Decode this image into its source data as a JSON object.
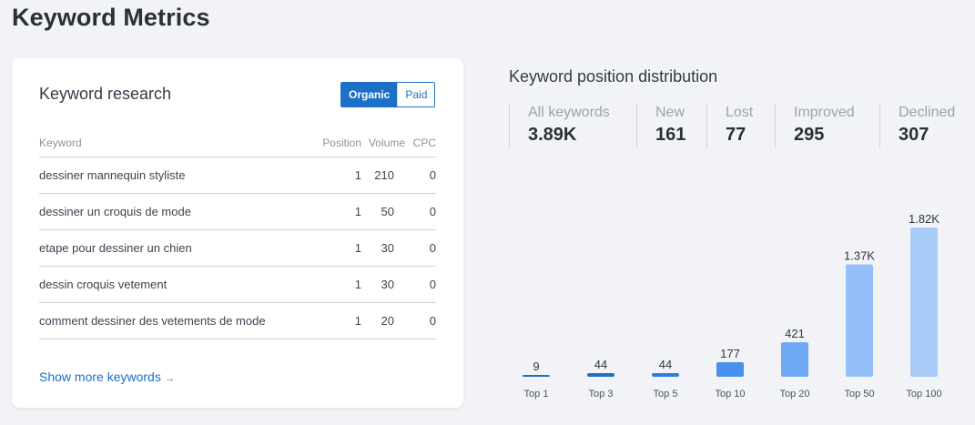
{
  "page": {
    "title": "Keyword Metrics"
  },
  "research": {
    "title": "Keyword research",
    "toggle": {
      "organic": "Organic",
      "paid": "Paid"
    },
    "columns": {
      "keyword": "Keyword",
      "position": "Position",
      "volume": "Volume",
      "cpc": "CPC"
    },
    "rows": [
      {
        "keyword": "dessiner mannequin styliste",
        "position": "1",
        "volume": "210",
        "cpc": "0"
      },
      {
        "keyword": "dessiner un croquis de mode",
        "position": "1",
        "volume": "50",
        "cpc": "0"
      },
      {
        "keyword": "etape pour dessiner un chien",
        "position": "1",
        "volume": "30",
        "cpc": "0"
      },
      {
        "keyword": "dessin croquis vetement",
        "position": "1",
        "volume": "30",
        "cpc": "0"
      },
      {
        "keyword": "comment dessiner des vetements de mode",
        "position": "1",
        "volume": "20",
        "cpc": "0"
      }
    ],
    "show_more": "Show more keywords",
    "show_more_arrow": "→"
  },
  "distribution": {
    "title": "Keyword position distribution",
    "metrics": [
      {
        "label": "All keywords",
        "value": "3.89K"
      },
      {
        "label": "New",
        "value": "161"
      },
      {
        "label": "Lost",
        "value": "77"
      },
      {
        "label": "Improved",
        "value": "295"
      },
      {
        "label": "Declined",
        "value": "307"
      }
    ]
  },
  "chart_data": {
    "type": "bar",
    "title": "",
    "xlabel": "",
    "ylabel": "",
    "categories": [
      "Top 1",
      "Top 3",
      "Top 5",
      "Top 10",
      "Top 20",
      "Top 50",
      "Top 100"
    ],
    "values": [
      9,
      44,
      44,
      177,
      421,
      1370,
      1820
    ],
    "value_labels": [
      "9",
      "44",
      "44",
      "177",
      "421",
      "1.37K",
      "1.82K"
    ],
    "ylim": [
      0,
      1820
    ],
    "grid": false,
    "colors": [
      "#1e6fc8",
      "#1e6fc8",
      "#2f7de0",
      "#4b8fec",
      "#6ea8f3",
      "#94bff7",
      "#a9cbf8"
    ]
  }
}
